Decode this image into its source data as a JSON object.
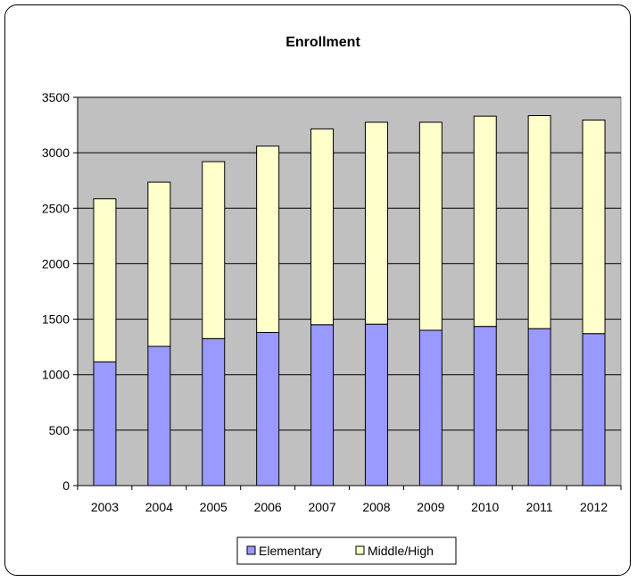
{
  "chart_data": {
    "type": "bar",
    "stacked": true,
    "title": "Enrollment",
    "xlabel": "",
    "ylabel": "",
    "categories": [
      "2003",
      "2004",
      "2005",
      "2006",
      "2007",
      "2008",
      "2009",
      "2010",
      "2011",
      "2012"
    ],
    "series": [
      {
        "name": "Elementary",
        "values": [
          1115,
          1255,
          1325,
          1380,
          1450,
          1455,
          1400,
          1435,
          1415,
          1370
        ],
        "color": "#9999ff"
      },
      {
        "name": "Middle/High",
        "values": [
          1470,
          1480,
          1595,
          1680,
          1765,
          1820,
          1875,
          1895,
          1920,
          1925
        ],
        "color": "#ffffcc"
      }
    ],
    "ylim": [
      0,
      3500
    ],
    "yticks": [
      0,
      500,
      1000,
      1500,
      2000,
      2500,
      3000,
      3500
    ],
    "grid": true,
    "plot_background": "#c0c0c0",
    "legend_position": "bottom"
  }
}
